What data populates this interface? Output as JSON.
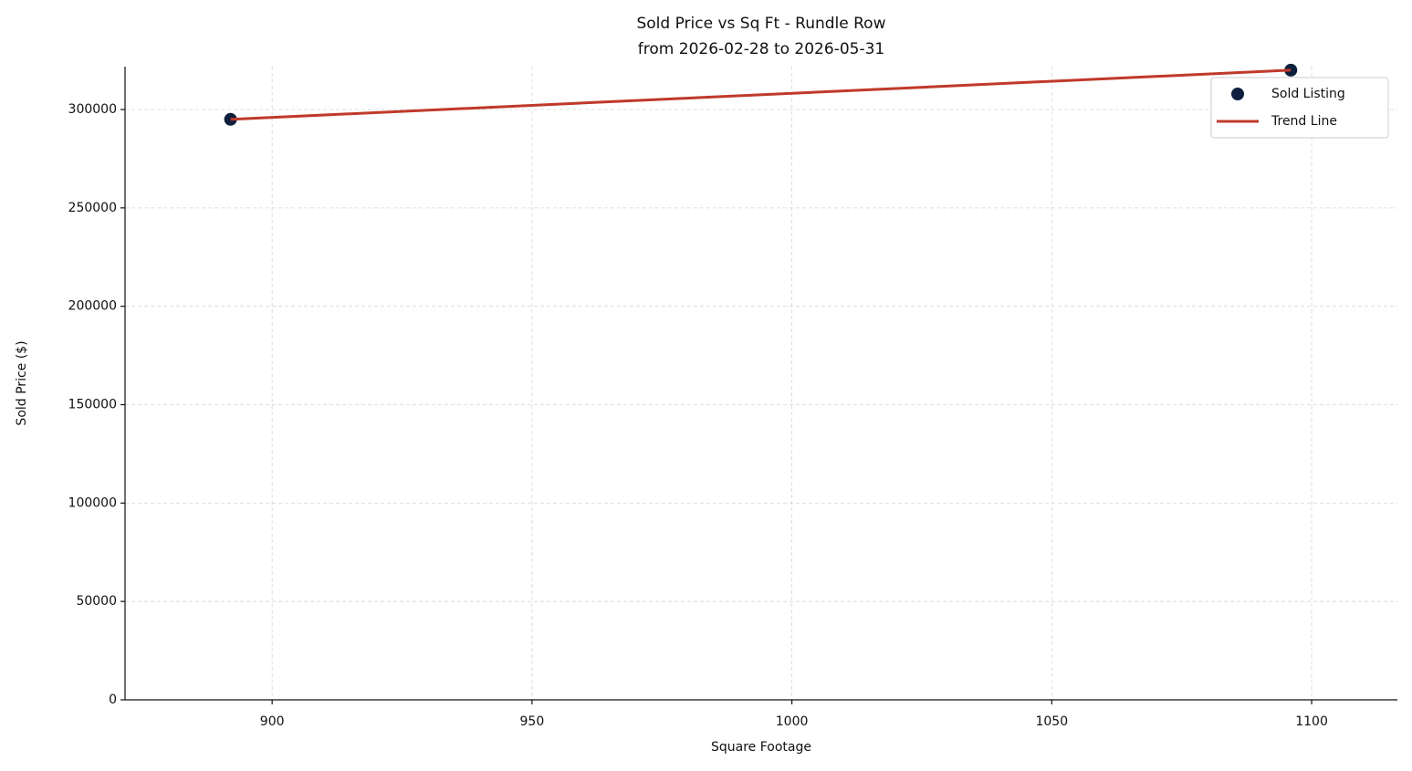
{
  "chart_data": {
    "type": "scatter",
    "title": "Sold Price vs Sq Ft - Rundle Row",
    "subtitle": "from 2026-02-28 to 2026-05-31",
    "x_label": "Square Footage",
    "y_label": "Sold Price ($)",
    "series": [
      {
        "name": "Sold Listing",
        "type": "scatter",
        "color": "#0d1f3c",
        "x": [
          892,
          1096
        ],
        "values": [
          295000,
          320000
        ]
      },
      {
        "name": "Trend Line",
        "type": "line",
        "color": "#c0392b",
        "x": [
          892,
          1096
        ],
        "values": [
          295000,
          320000
        ]
      }
    ],
    "xlim": [
      871.7,
      1116.5
    ],
    "xticks": [
      900,
      950,
      1000,
      1050,
      1100
    ],
    "ylim": [
      0,
      321800
    ],
    "yticks": [
      0,
      50000,
      100000,
      150000,
      200000,
      250000,
      300000
    ],
    "grid": true,
    "legend": "upper-right"
  }
}
